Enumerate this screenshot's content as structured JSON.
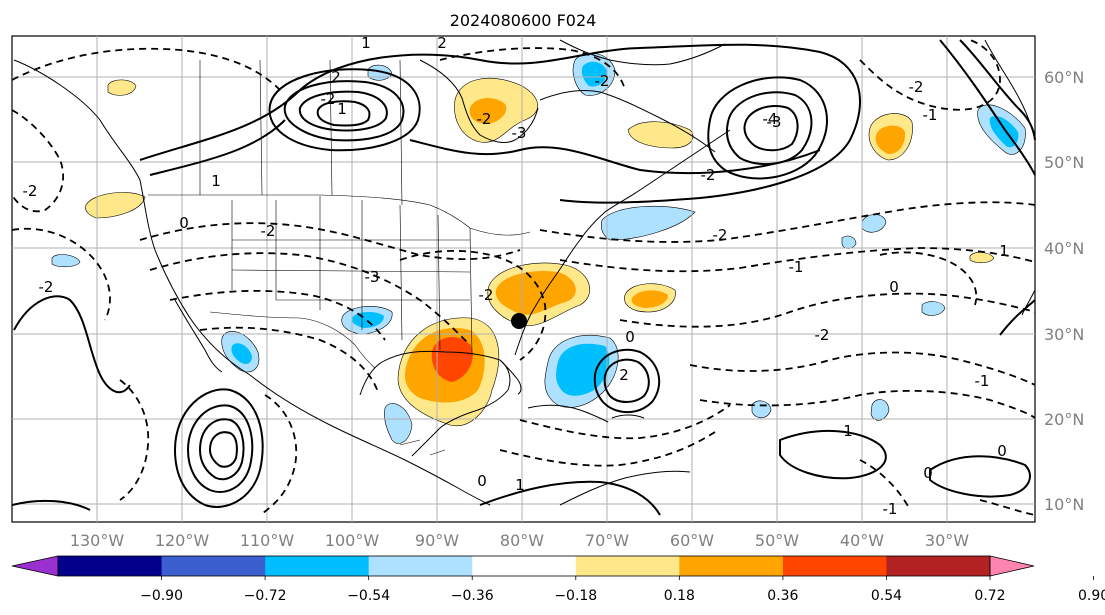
{
  "title": "2024080600 F024",
  "map": {
    "lon_labels": [
      "130°W",
      "120°W",
      "110°W",
      "100°W",
      "90°W",
      "80°W",
      "70°W",
      "60°W",
      "50°W",
      "40°W",
      "30°W"
    ],
    "lat_labels": [
      "60°N",
      "50°N",
      "40°N",
      "30°N",
      "20°N",
      "10°N"
    ],
    "contour_labels": [
      "1",
      "2",
      "2",
      "1",
      "-2",
      "-2",
      "-3",
      "-2",
      "-3",
      "-1",
      "-2",
      "-4",
      "-2",
      "-2",
      "0",
      "1",
      "-2",
      "-2",
      "-3",
      "-2",
      "-1",
      "0",
      "-2",
      "0",
      "2",
      "1",
      "-1",
      "0",
      "-2",
      "1",
      "-1",
      "0",
      "0",
      "1"
    ],
    "storm_marker": "black-dot"
  },
  "colorbar": {
    "colors": [
      "#9b30d0",
      "#00008b",
      "#3c5fd0",
      "#00bfff",
      "#aee0ff",
      "#ffffff",
      "#ffe88a",
      "#ffa500",
      "#ff4500",
      "#b22222",
      "#ff85b0"
    ],
    "ticks": [
      "−0.90",
      "−0.72",
      "−0.54",
      "−0.36",
      "−0.18",
      "0.18",
      "0.36",
      "0.54",
      "0.72",
      "0.90"
    ]
  }
}
